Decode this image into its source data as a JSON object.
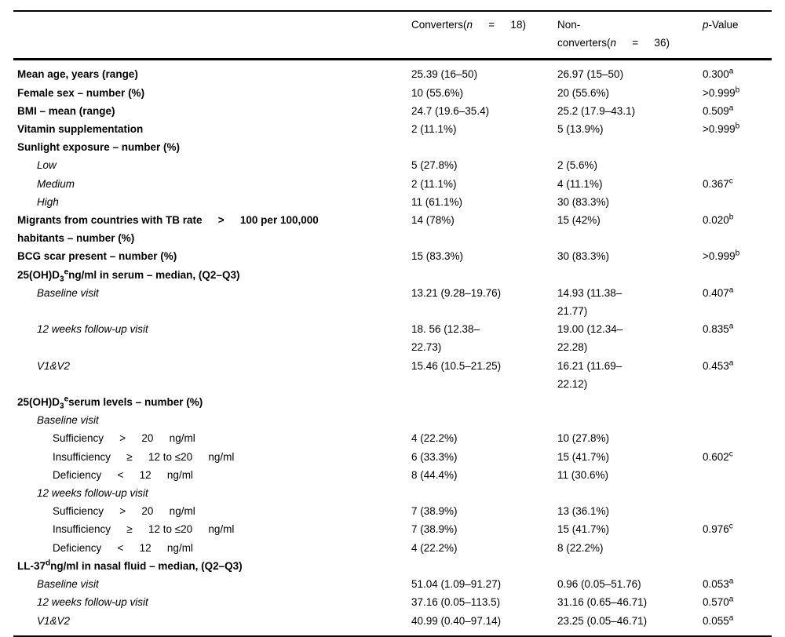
{
  "header": {
    "label": "",
    "converters": [
      {
        "t": "Converters("
      },
      {
        "t": "n",
        "s": "i"
      },
      {
        "t": "  =  18)"
      }
    ],
    "nonconverters": [
      {
        "t": "Non-\n"
      },
      {
        "t": "converters("
      },
      {
        "t": "n",
        "s": "i"
      },
      {
        "t": "  =  36)"
      }
    ],
    "pvalue": [
      {
        "t": "p",
        "s": "i"
      },
      {
        "t": "-Value"
      }
    ]
  },
  "rows": [
    {
      "label": "Mean age, years (range)",
      "bold": true,
      "indent": 0,
      "converters": "25.39 (16–50)",
      "nonconverters": "26.97 (15–50)",
      "p": "0.300",
      "psup": "a"
    },
    {
      "label": "Female sex – number (%)",
      "bold": true,
      "indent": 0,
      "converters": "10 (55.6%)",
      "nonconverters": "20 (55.6%)",
      "p": ">0.999",
      "psup": "b"
    },
    {
      "label": "BMI – mean (range)",
      "bold": true,
      "indent": 0,
      "converters": "24.7 (19.6–35.4)",
      "nonconverters": "25.2 (17.9–43.1)",
      "p": "0.509",
      "psup": "a"
    },
    {
      "label": "Vitamin supplementation",
      "bold": true,
      "indent": 0,
      "converters": "2 (11.1%)",
      "nonconverters": "5 (13.9%)",
      "p": ">0.999",
      "psup": "b"
    },
    {
      "label": "Sunlight exposure – number (%)",
      "bold": true,
      "indent": 0,
      "converters": "",
      "nonconverters": "",
      "p": ""
    },
    {
      "label": "Low",
      "italic": true,
      "indent": 1,
      "converters": "5 (27.8%)",
      "nonconverters": "2 (5.6%)",
      "p": ""
    },
    {
      "label": "Medium",
      "italic": true,
      "indent": 1,
      "converters": "2 (11.1%)",
      "nonconverters": "4 (11.1%)",
      "p": "0.367",
      "psup": "c"
    },
    {
      "label": "High",
      "italic": true,
      "indent": 1,
      "converters": "11 (61.1%)",
      "nonconverters": "30 (83.3%)",
      "p": ""
    },
    {
      "label": "Migrants from countries with TB rate  >  100 per 100,000\nhabitants – number (%)",
      "bold": true,
      "indent": 0,
      "converters": "14 (78%)",
      "nonconverters": "15 (42%)",
      "p": "0.020",
      "psup": "b"
    },
    {
      "label": "BCG scar present – number (%)",
      "bold": true,
      "indent": 0,
      "converters": "15 (83.3%)",
      "nonconverters": "30 (83.3%)",
      "p": ">0.999",
      "psup": "b"
    },
    {
      "label": [
        {
          "t": "25(OH)D"
        },
        {
          "t": "3",
          "s": "sub"
        },
        {
          "t": "e",
          "s": "sup"
        },
        {
          "t": "ng/ml in serum – median, (Q2–Q3)"
        }
      ],
      "bold": true,
      "indent": 0,
      "converters": "",
      "nonconverters": "",
      "p": ""
    },
    {
      "label": "Baseline visit",
      "italic": true,
      "indent": 1,
      "converters": "13.21 (9.28–19.76)",
      "nonconverters": "14.93 (11.38–\n21.77)",
      "p": "0.407",
      "psup": "a"
    },
    {
      "label": "12 weeks follow-up visit",
      "italic": true,
      "indent": 1,
      "converters": "18. 56 (12.38–\n22.73)",
      "nonconverters": "19.00 (12.34–\n22.28)",
      "p": "0.835",
      "psup": "a"
    },
    {
      "label": "V1&V2",
      "italic": true,
      "indent": 1,
      "converters": "15.46 (10.5–21.25)",
      "nonconverters": "16.21 (11.69–\n22.12)",
      "p": "0.453",
      "psup": "a"
    },
    {
      "label": [
        {
          "t": "25(OH)D"
        },
        {
          "t": "3",
          "s": "sub"
        },
        {
          "t": "e",
          "s": "sup"
        },
        {
          "t": "serum levels – number (%)"
        }
      ],
      "bold": true,
      "indent": 0,
      "converters": "",
      "nonconverters": "",
      "p": ""
    },
    {
      "label": "Baseline visit",
      "italic": true,
      "indent": 1,
      "converters": "",
      "nonconverters": "",
      "p": ""
    },
    {
      "label": "Sufficiency  >  20  ng/ml",
      "indent": 2,
      "converters": "4 (22.2%)",
      "nonconverters": "10 (27.8%)",
      "p": ""
    },
    {
      "label": "Insufficiency  ≥  12 to ≤20  ng/ml",
      "indent": 2,
      "converters": "6 (33.3%)",
      "nonconverters": "15 (41.7%)",
      "p": "0.602",
      "psup": "c"
    },
    {
      "label": "Deficiency  <  12  ng/ml",
      "indent": 2,
      "converters": "8 (44.4%)",
      "nonconverters": "11 (30.6%)",
      "p": ""
    },
    {
      "label": "12 weeks follow-up visit",
      "italic": true,
      "indent": 1,
      "converters": "",
      "nonconverters": "",
      "p": ""
    },
    {
      "label": "Sufficiency  >  20  ng/ml",
      "indent": 2,
      "converters": "7 (38.9%)",
      "nonconverters": "13 (36.1%)",
      "p": ""
    },
    {
      "label": "Insufficiency  ≥  12 to ≤20  ng/ml",
      "indent": 2,
      "converters": "7 (38.9%)",
      "nonconverters": "15 (41.7%)",
      "p": "0.976",
      "psup": "c"
    },
    {
      "label": "Deficiency  <  12  ng/ml",
      "indent": 2,
      "converters": "4 (22.2%)",
      "nonconverters": "8 (22.2%)",
      "p": ""
    },
    {
      "label": [
        {
          "t": "LL-37"
        },
        {
          "t": "d",
          "s": "sup"
        },
        {
          "t": "ng/ml in nasal fluid – median, (Q2–Q3)"
        }
      ],
      "bold": true,
      "indent": 0,
      "converters": "",
      "nonconverters": "",
      "p": ""
    },
    {
      "label": "Baseline visit",
      "italic": true,
      "indent": 1,
      "converters": "51.04 (1.09–91.27)",
      "nonconverters": "0.96 (0.05–51.76)",
      "p": "0.053",
      "psup": "a"
    },
    {
      "label": "12 weeks follow-up visit",
      "italic": true,
      "indent": 1,
      "converters": "37.16 (0.05–113.5)",
      "nonconverters": "31.16 (0.65–46.71)",
      "p": "0.570",
      "psup": "a"
    },
    {
      "label": "V1&V2",
      "italic": true,
      "indent": 1,
      "converters": "40.99 (0.40–97.14)",
      "nonconverters": "23.25 (0.05–46.71)",
      "p": "0.055",
      "psup": "a"
    }
  ]
}
